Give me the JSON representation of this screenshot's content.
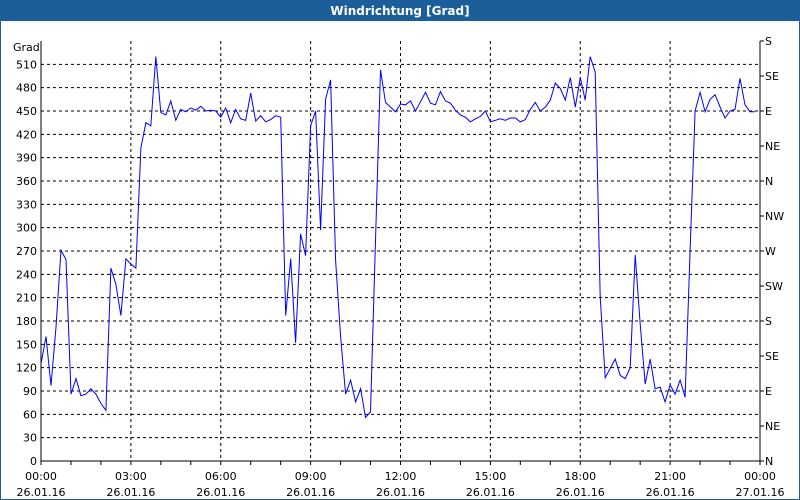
{
  "window": {
    "title": "Windrichtung [Grad]"
  },
  "chart_data": {
    "type": "line",
    "title": "Windrichtung [Grad]",
    "ylabel": "Grad",
    "ylim": [
      0,
      540
    ],
    "yticks": [
      0,
      30,
      60,
      90,
      120,
      150,
      180,
      210,
      240,
      270,
      300,
      330,
      360,
      390,
      420,
      450,
      480,
      510
    ],
    "right_axis_labels": [
      "S",
      "SE",
      "E",
      "NE",
      "N",
      "NW",
      "W",
      "SW",
      "S",
      "SE",
      "E",
      "NE",
      "N"
    ],
    "right_axis_values": [
      540,
      495,
      450,
      405,
      360,
      315,
      270,
      225,
      180,
      135,
      90,
      45,
      0
    ],
    "xticks": [
      {
        "time": "00:00",
        "date": "26.01.16"
      },
      {
        "time": "03:00",
        "date": "26.01.16"
      },
      {
        "time": "06:00",
        "date": "26.01.16"
      },
      {
        "time": "09:00",
        "date": "26.01.16"
      },
      {
        "time": "12:00",
        "date": "26.01.16"
      },
      {
        "time": "15:00",
        "date": "26.01.16"
      },
      {
        "time": "18:00",
        "date": "26.01.16"
      },
      {
        "time": "21:00",
        "date": "26.01.16"
      },
      {
        "time": "00:00",
        "date": "27.01.16"
      }
    ],
    "xlim": [
      "26.01.16 00:00",
      "27.01.16 00:00"
    ],
    "grid": true,
    "line_color": "#0000ff",
    "series": [
      {
        "x": [
          "00:00",
          "00:10",
          "00:20",
          "00:30",
          "00:40",
          "00:50",
          "01:00",
          "01:10",
          "01:20",
          "01:30",
          "01:40",
          "01:50",
          "02:00",
          "02:10",
          "02:20",
          "02:30",
          "02:40",
          "02:50",
          "03:00",
          "03:10",
          "03:20",
          "03:30",
          "03:40",
          "03:50",
          "04:00",
          "04:10",
          "04:20",
          "04:30",
          "04:40",
          "04:50",
          "05:00",
          "05:10",
          "05:20",
          "05:30",
          "05:40",
          "05:50",
          "06:00",
          "06:10",
          "06:20",
          "06:30",
          "06:40",
          "06:50",
          "07:00",
          "07:10",
          "07:20",
          "07:30",
          "07:40",
          "07:50",
          "08:00",
          "08:10",
          "08:20",
          "08:30",
          "08:40",
          "08:50",
          "09:00",
          "09:10",
          "09:20",
          "09:30",
          "09:40",
          "09:50",
          "10:00",
          "10:10",
          "10:20",
          "10:30",
          "10:40",
          "10:50",
          "11:00",
          "11:20",
          "11:30",
          "11:40",
          "11:50",
          "12:00",
          "12:10",
          "12:20",
          "12:30",
          "12:40",
          "12:50",
          "13:00",
          "13:10",
          "13:20",
          "13:30",
          "13:40",
          "13:50",
          "14:00",
          "14:10",
          "14:20",
          "14:30",
          "14:40",
          "14:50",
          "15:00",
          "15:10",
          "15:20",
          "15:30",
          "15:40",
          "15:50",
          "16:00",
          "16:10",
          "16:20",
          "16:30",
          "16:40",
          "16:50",
          "17:00",
          "17:10",
          "17:20",
          "17:30",
          "17:40",
          "17:50",
          "18:00",
          "18:10",
          "18:20",
          "18:30",
          "18:40",
          "18:50",
          "19:00",
          "19:10",
          "19:20",
          "19:30",
          "19:40",
          "19:50",
          "20:00",
          "20:10",
          "20:20",
          "20:30",
          "20:40",
          "20:50",
          "21:00",
          "21:10",
          "21:20",
          "21:30",
          "21:40",
          "21:50",
          "22:00",
          "22:10",
          "22:20",
          "22:30",
          "22:40",
          "22:50",
          "23:00",
          "23:10",
          "23:20",
          "23:30",
          "23:40",
          "23:50"
        ],
        "y": [
          125,
          160,
          97,
          172,
          271,
          259,
          86,
          106,
          84,
          86,
          93,
          86,
          74,
          65,
          248,
          227,
          187,
          260,
          253,
          248,
          403,
          435,
          431,
          520,
          448,
          445,
          463,
          438,
          452,
          449,
          454,
          451,
          456,
          450,
          451,
          450,
          442,
          454,
          435,
          452,
          440,
          438,
          473,
          437,
          444,
          436,
          439,
          444,
          442,
          187,
          260,
          152,
          292,
          264,
          431,
          450,
          297,
          465,
          490,
          258,
          160,
          86,
          104,
          76,
          93,
          56,
          63,
          503,
          461,
          455,
          449,
          459,
          458,
          463,
          450,
          462,
          474,
          460,
          458,
          475,
          463,
          460,
          451,
          445,
          442,
          436,
          440,
          443,
          450,
          436,
          438,
          440,
          438,
          441,
          441,
          436,
          439,
          452,
          461,
          450,
          455,
          464,
          486,
          479,
          464,
          493,
          455,
          493,
          464,
          520,
          500,
          211,
          107,
          119,
          131,
          110,
          106,
          120,
          265,
          176,
          99,
          131,
          93,
          95,
          76,
          98,
          86,
          104,
          82,
          271,
          450,
          474,
          449,
          465,
          471,
          455,
          441,
          450,
          452,
          492,
          458,
          449,
          449
        ]
      }
    ]
  }
}
